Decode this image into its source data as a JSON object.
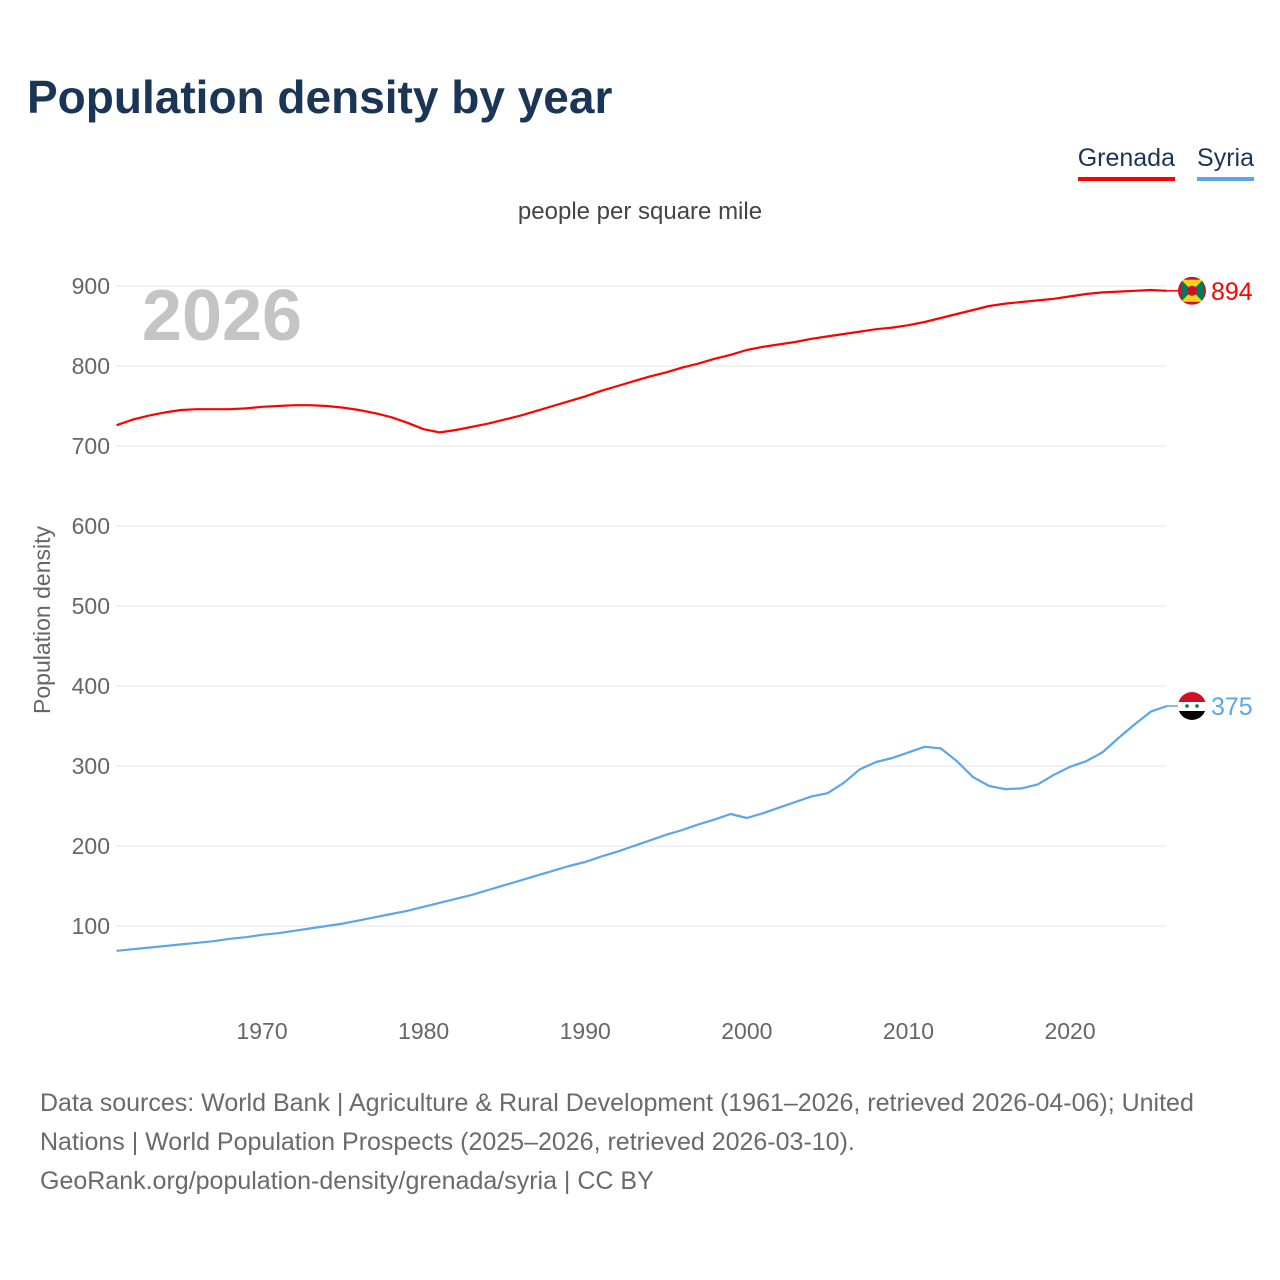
{
  "title": "Population density by year",
  "subtitle": "people per square mile",
  "watermark_year": "2026",
  "footer": {
    "line1": "Data sources: World Bank | Agriculture & Rural Development (1961–2026, retrieved 2026-04-06); United Nations | World Population Prospects (2025–2026, retrieved 2026-03-10).",
    "line2": "GeoRank.org/population-density/grenada/syria | CC BY"
  },
  "chart_data": {
    "type": "line",
    "title": "Population density by year",
    "ylabel": "Population density",
    "xlabel": "",
    "ylim": [
      0,
      900
    ],
    "xlim": [
      1961,
      2026
    ],
    "yticks": [
      "100",
      "200",
      "300",
      "400",
      "500",
      "600",
      "700",
      "800",
      "900"
    ],
    "xticks": [
      "1970",
      "1980",
      "1990",
      "2000",
      "2010",
      "2020"
    ],
    "legend": "top-right",
    "grid": true,
    "x_start": 1961,
    "series": [
      {
        "name": "Grenada",
        "color": "#ff0000",
        "end_label": "894",
        "values": [
          726,
          733,
          738,
          742,
          745,
          746,
          746,
          746,
          747,
          749,
          750,
          751,
          751,
          750,
          748,
          745,
          741,
          736,
          729,
          721,
          717,
          720,
          724,
          728,
          733,
          738,
          744,
          750,
          756,
          762,
          769,
          775,
          781,
          787,
          792,
          798,
          803,
          809,
          814,
          820,
          824,
          827,
          830,
          834,
          837,
          840,
          843,
          846,
          848,
          851,
          855,
          860,
          865,
          870,
          875,
          878,
          880,
          882,
          884,
          887,
          890,
          892,
          893,
          894,
          895,
          894
        ]
      },
      {
        "name": "Syria",
        "color": "#5ba5ea",
        "end_label": "375",
        "values": [
          69,
          71,
          73,
          75,
          77,
          79,
          81,
          84,
          86,
          89,
          91,
          94,
          97,
          100,
          103,
          107,
          111,
          115,
          119,
          124,
          129,
          134,
          139,
          145,
          151,
          157,
          163,
          169,
          175,
          180,
          187,
          193,
          200,
          207,
          214,
          220,
          227,
          233,
          240,
          235,
          241,
          248,
          255,
          262,
          266,
          279,
          296,
          305,
          310,
          317,
          324,
          322,
          306,
          286,
          275,
          271,
          272,
          277,
          289,
          299,
          306,
          317,
          335,
          352,
          368,
          375
        ]
      }
    ]
  }
}
